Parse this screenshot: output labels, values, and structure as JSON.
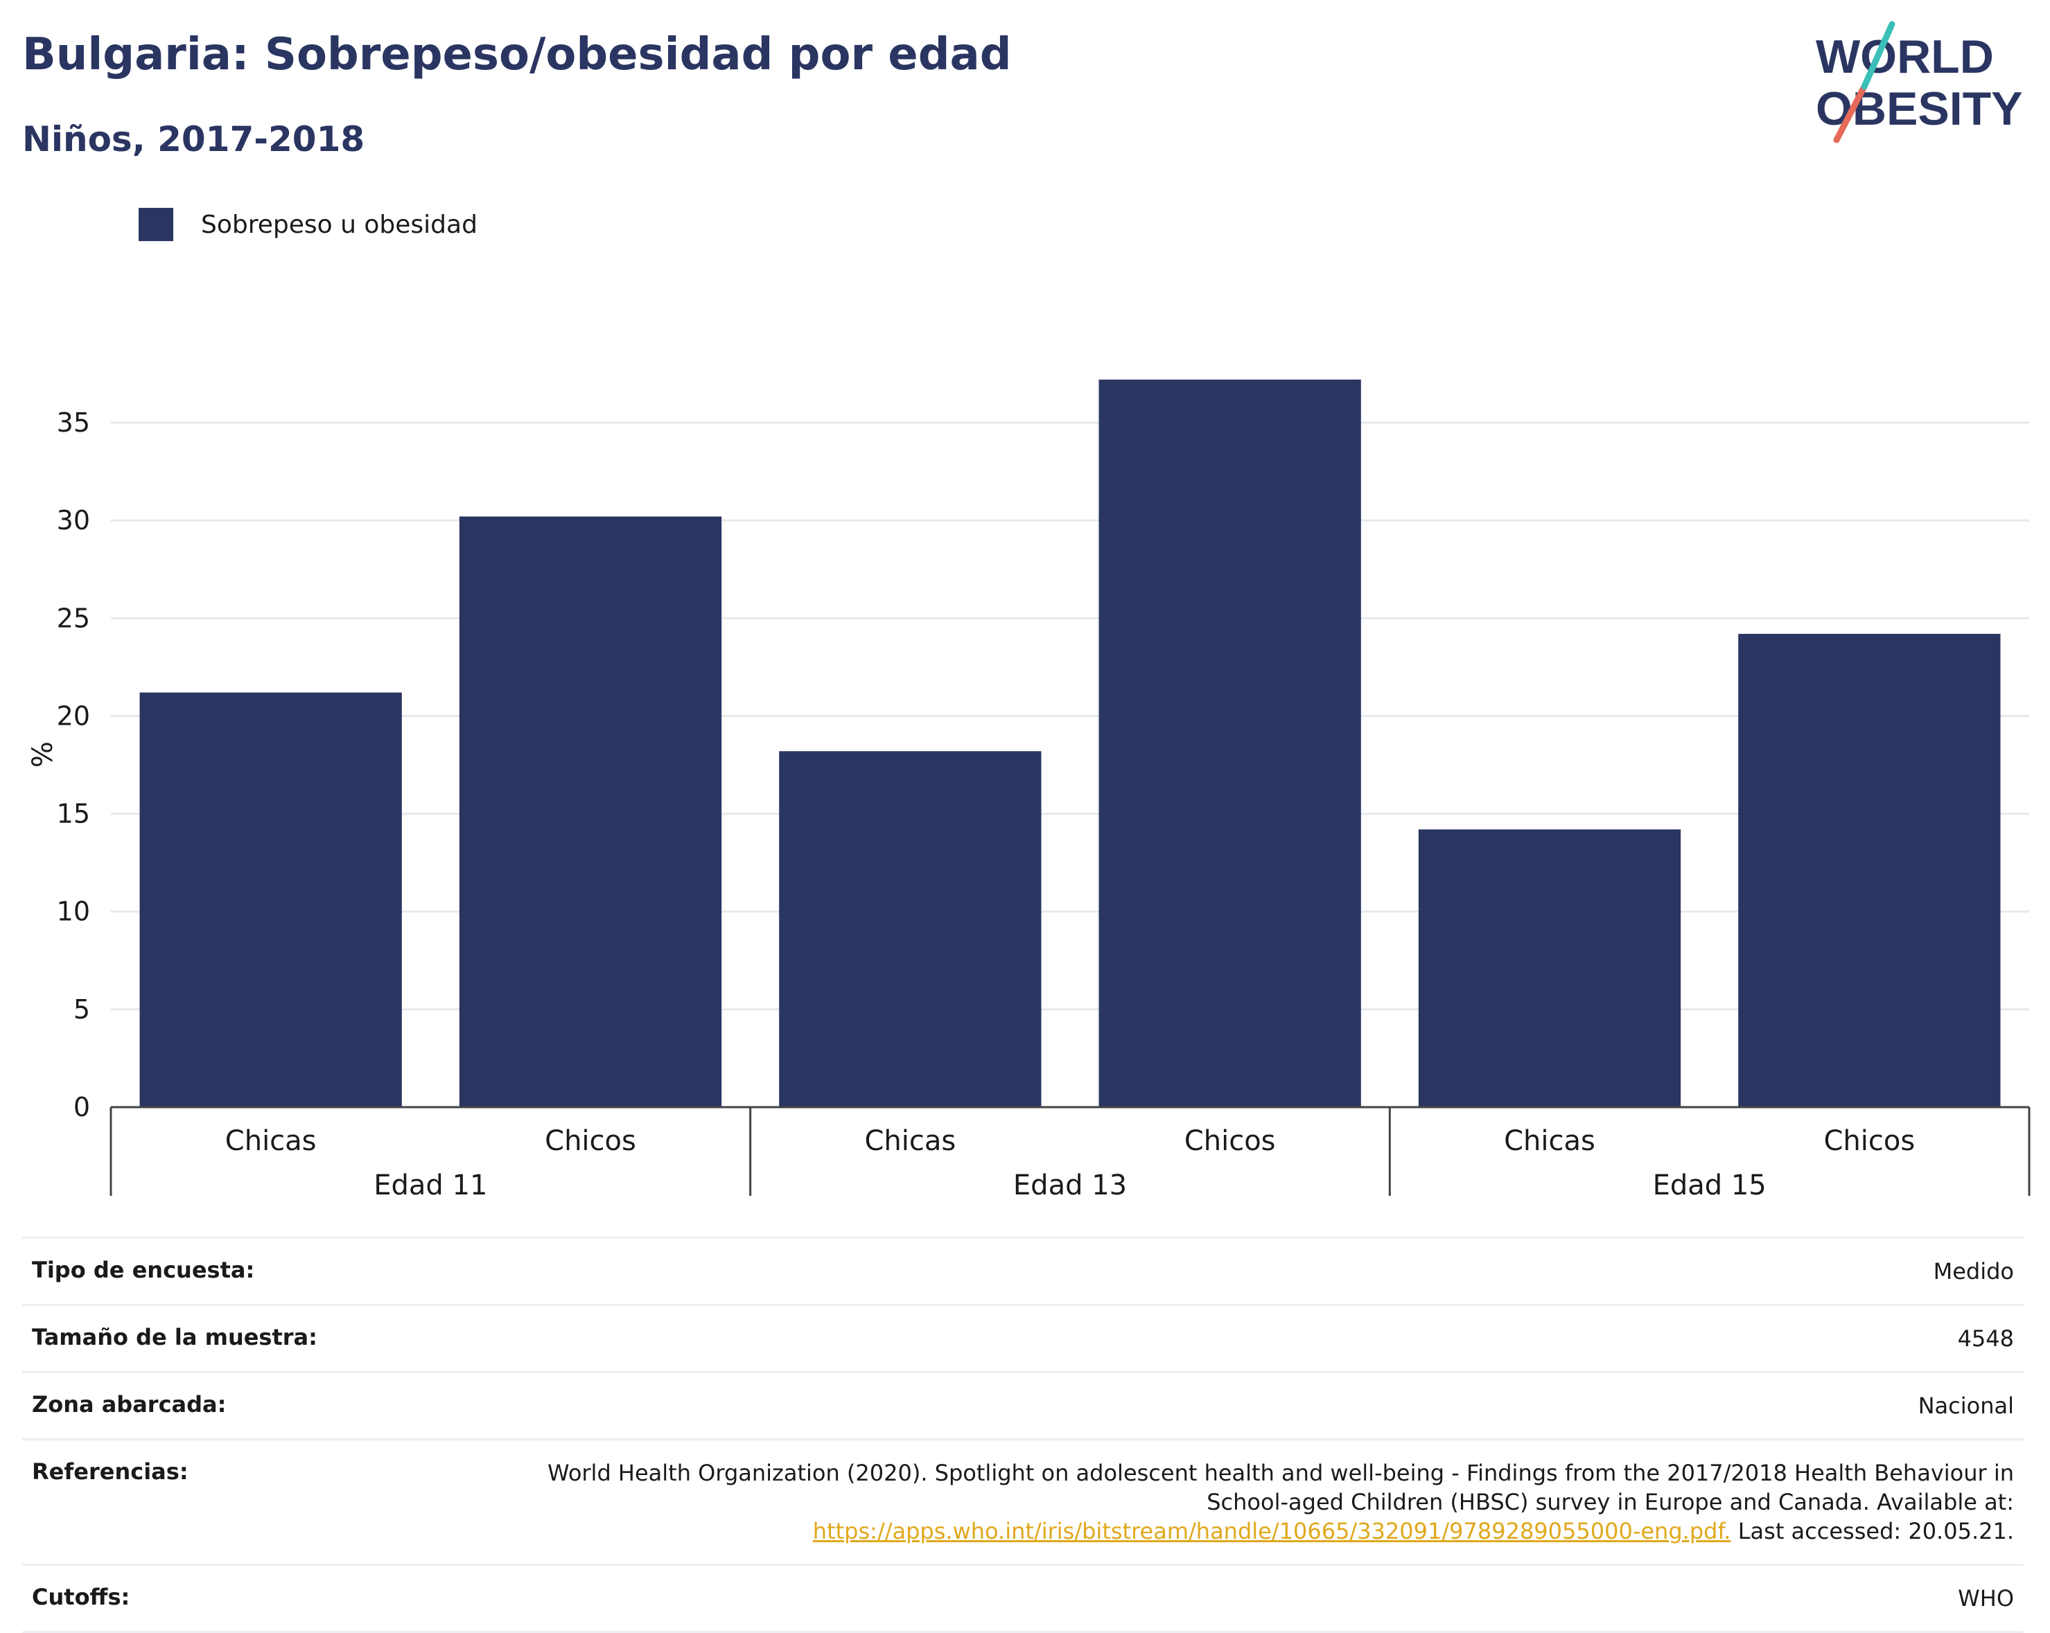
{
  "header": {
    "title": "Bulgaria: Sobrepeso/obesidad por edad",
    "subtitle": "Niños, 2017-2018",
    "logo_line1": "WORLD",
    "logo_line2": "OBESITY"
  },
  "colors": {
    "bar": "#2a3562",
    "title": "#2a3562",
    "link": "#e0a81c",
    "grid": "#e6e8ee"
  },
  "chart_data": {
    "type": "bar",
    "legend": [
      "Sobrepeso u obesidad"
    ],
    "legend_position": "top-left",
    "ylabel": "%",
    "ylim": [
      0,
      38
    ],
    "yticks": [
      0,
      5,
      10,
      15,
      20,
      25,
      30,
      35
    ],
    "grid": true,
    "groups": [
      {
        "label": "Edad 11",
        "categories": [
          "Chicas",
          "Chicos"
        ],
        "values": [
          21.2,
          30.2
        ]
      },
      {
        "label": "Edad 13",
        "categories": [
          "Chicas",
          "Chicos"
        ],
        "values": [
          18.2,
          37.2
        ]
      },
      {
        "label": "Edad 15",
        "categories": [
          "Chicas",
          "Chicos"
        ],
        "values": [
          14.2,
          24.2
        ]
      }
    ],
    "series": [
      {
        "name": "Sobrepeso u obesidad",
        "values": [
          21.2,
          30.2,
          18.2,
          37.2,
          14.2,
          24.2
        ]
      }
    ]
  },
  "meta": {
    "survey_type_label": "Tipo de encuesta:",
    "survey_type_value": "Medido",
    "sample_label": "Tamaño de la muestra:",
    "sample_value": "4548",
    "area_label": "Zona abarcada:",
    "area_value": "Nacional",
    "refs_label": "Referencias:",
    "refs_text1": "World Health Organization (2020). Spotlight on adolescent health and well-being - Findings from the 2017/2018 Health Behaviour in",
    "refs_text2": "School-aged Children (HBSC) survey in Europe and Canada. Available at:",
    "refs_link": "https://apps.who.int/iris/bitstream/handle/10665/332091/9789289055000-eng.pdf.",
    "refs_text3": " Last accessed: 20.05.21.",
    "cutoffs_label": "Cutoffs:",
    "cutoffs_value": "WHO"
  }
}
